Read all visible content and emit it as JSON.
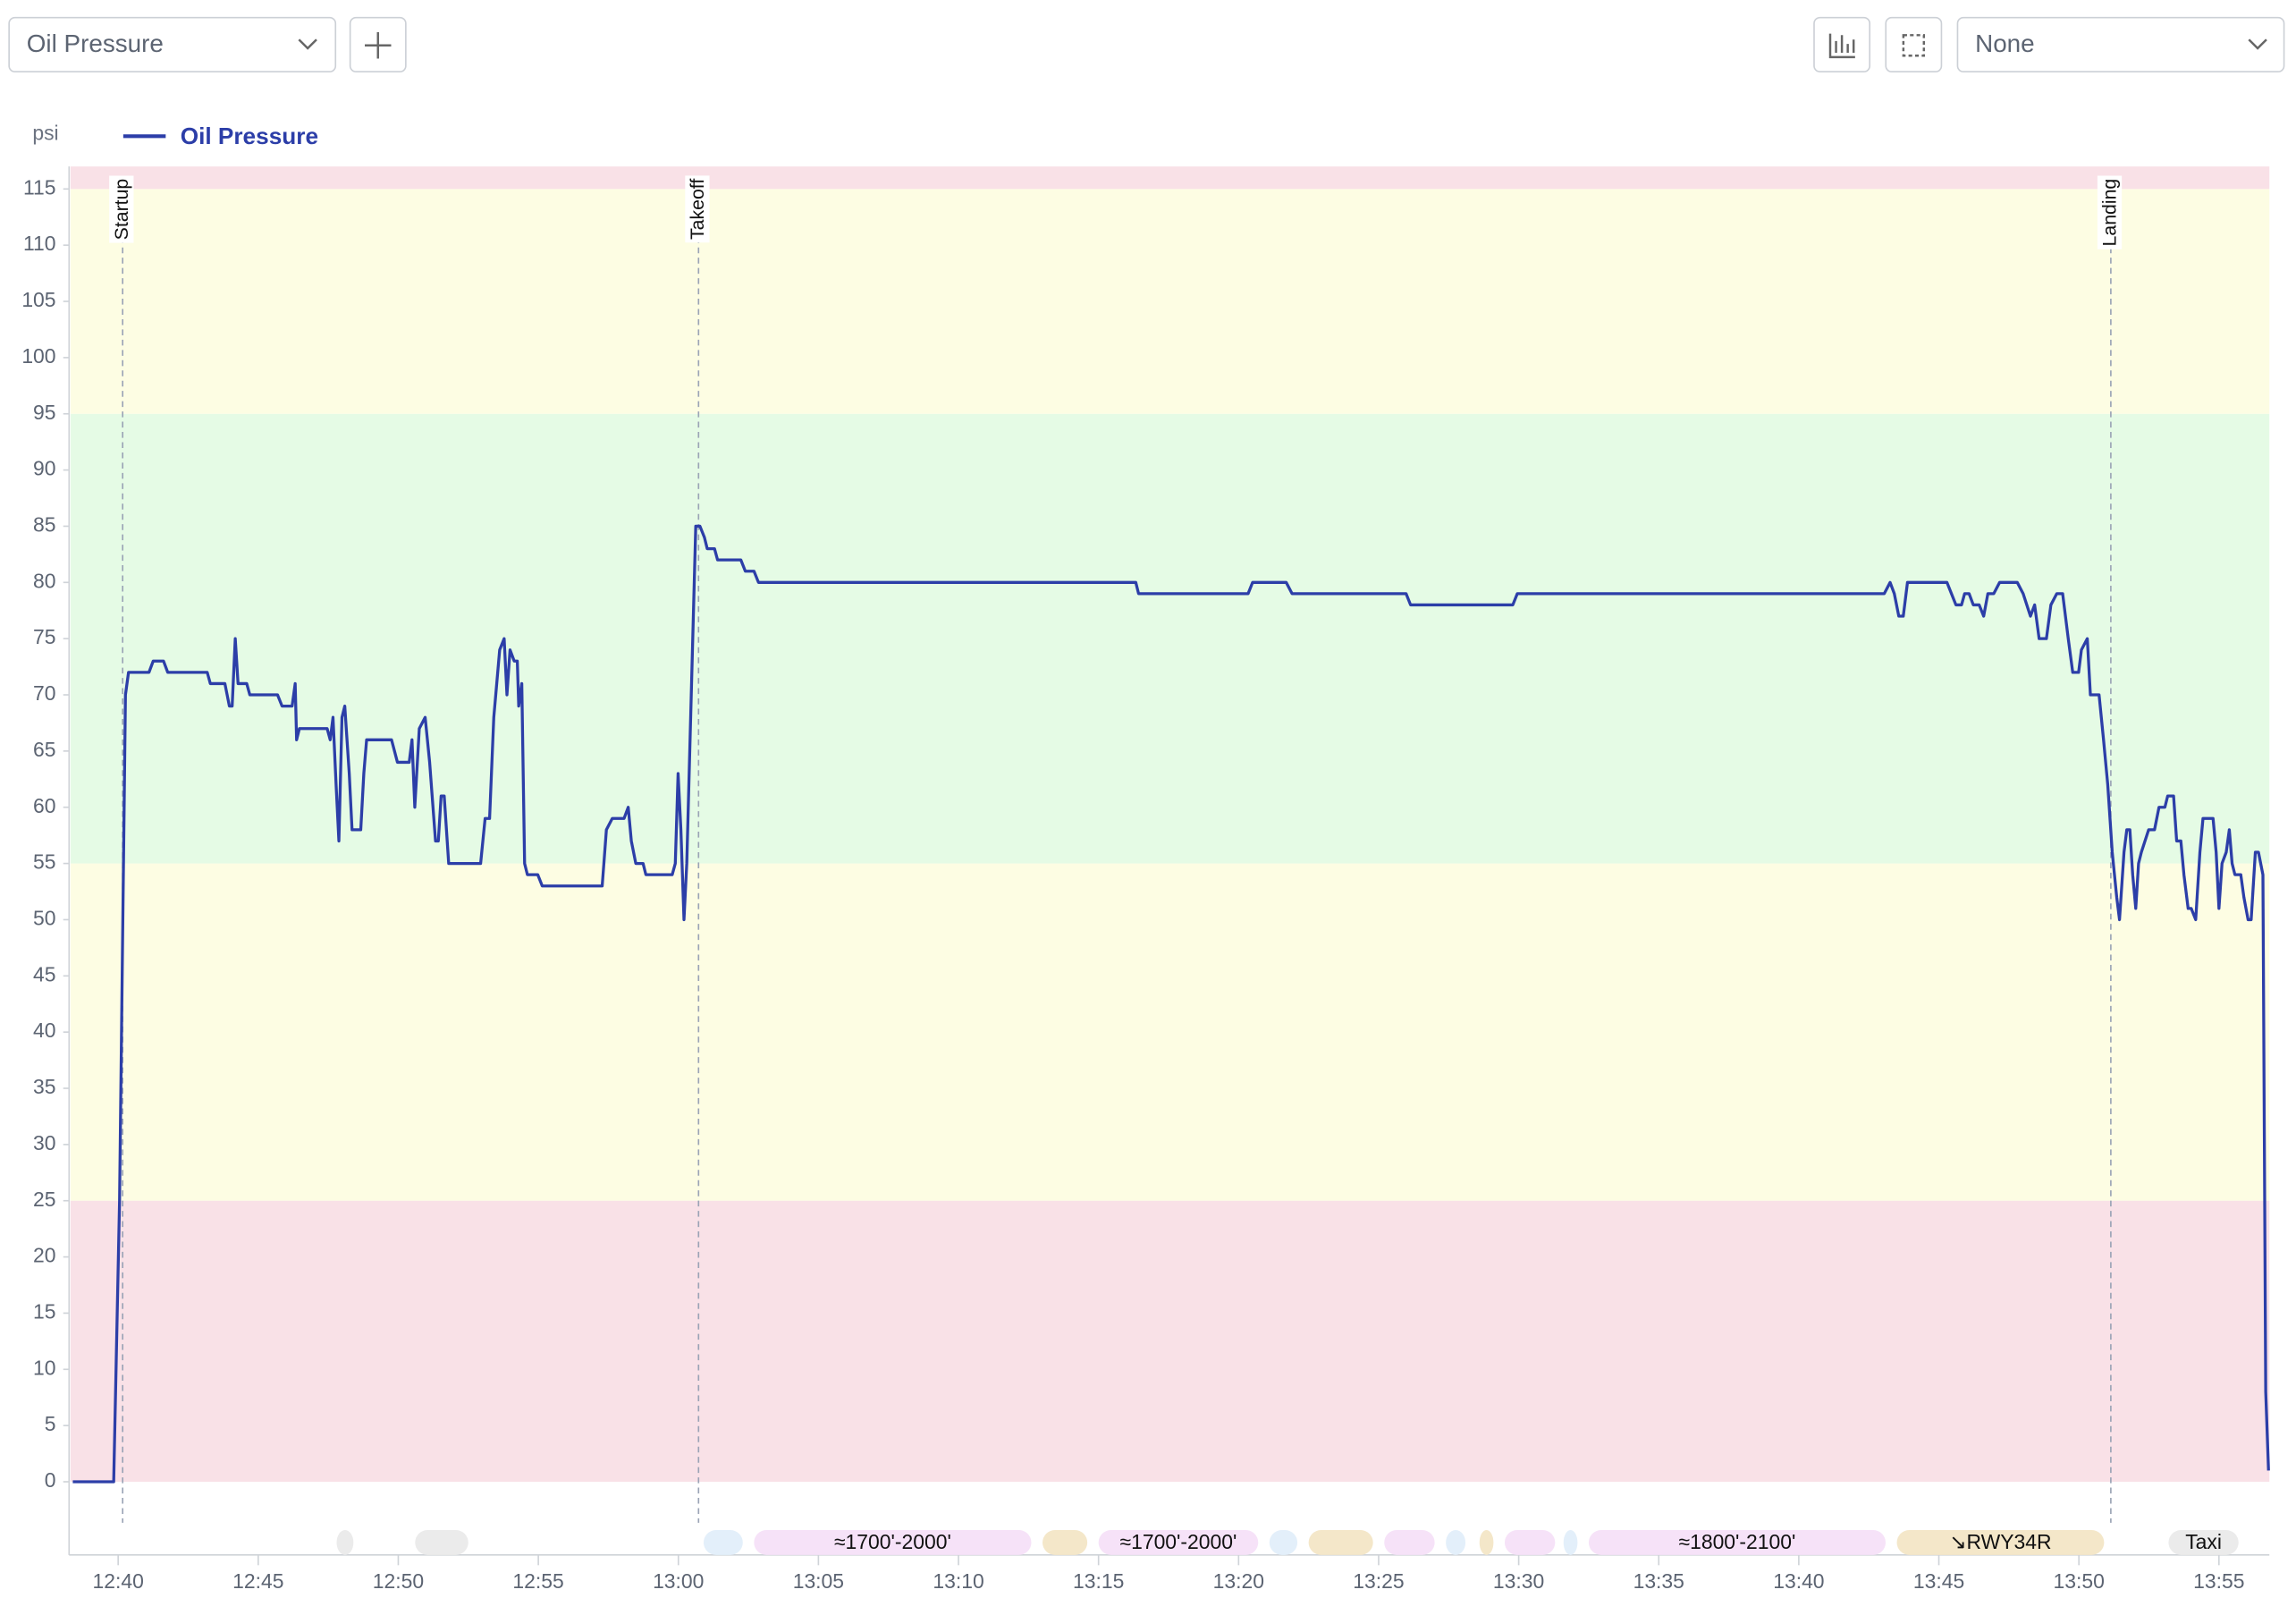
{
  "toolbar": {
    "metric_select": "Oil Pressure",
    "group_select": "None"
  },
  "chart_data": {
    "type": "line",
    "y_unit_label": "psi",
    "legend": "top-left",
    "x": [
      758.38,
      759.84,
      760.05,
      760.26,
      760.37,
      761.1,
      761.25,
      761.62,
      761.77,
      763.18,
      763.29,
      763.81,
      763.97,
      764.07,
      764.18,
      764.28,
      764.59,
      764.7,
      765.69,
      765.85,
      766.21,
      766.32,
      766.37,
      766.47,
      767.46,
      767.57,
      767.67,
      767.78,
      767.88,
      767.99,
      768.09,
      768.25,
      768.35,
      768.66,
      768.77,
      768.87,
      769.76,
      769.97,
      770.39,
      770.49,
      770.59,
      770.75,
      770.96,
      771.12,
      771.33,
      771.43,
      771.53,
      771.64,
      771.8,
      772.94,
      773.1,
      773.26,
      773.41,
      773.62,
      773.78,
      773.88,
      773.99,
      774.14,
      774.25,
      774.3,
      774.41,
      774.51,
      774.61,
      774.98,
      775.14,
      777.28,
      777.43,
      777.64,
      778.06,
      778.21,
      778.32,
      778.48,
      778.74,
      778.84,
      779.78,
      779.89,
      779.99,
      780.09,
      780.2,
      780.3,
      780.46,
      780.62,
      780.77,
      780.93,
      781.03,
      781.29,
      781.4,
      782.23,
      782.39,
      782.7,
      782.86,
      796.33,
      796.43,
      800.34,
      800.5,
      801.7,
      801.91,
      805.98,
      806.14,
      809.79,
      809.95,
      823.05,
      823.26,
      823.41,
      823.57,
      823.73,
      823.88,
      824.04,
      825.29,
      825.45,
      825.61,
      825.81,
      825.92,
      826.08,
      826.23,
      826.44,
      826.6,
      826.75,
      826.96,
      827.17,
      827.8,
      828.01,
      828.27,
      828.42,
      828.58,
      828.84,
      829.0,
      829.21,
      829.42,
      829.62,
      829.78,
      829.99,
      830.09,
      830.3,
      830.41,
      830.72,
      830.88,
      831.03,
      831.19,
      831.35,
      831.45,
      831.61,
      831.71,
      831.82,
      831.92,
      832.03,
      832.13,
      832.23,
      832.49,
      832.7,
      832.86,
      833.07,
      833.17,
      833.38,
      833.49,
      833.64,
      833.75,
      833.9,
      834.01,
      834.17,
      834.32,
      834.43,
      834.79,
      834.9,
      835.0,
      835.11,
      835.26,
      835.37,
      835.47,
      835.57,
      835.78,
      835.89,
      836.04,
      836.15,
      836.3,
      836.41,
      836.57,
      836.67,
      836.77
    ],
    "series": [
      {
        "name": "Oil Pressure",
        "color": "#2c3ea8",
        "values": [
          0,
          0,
          25,
          70,
          72,
          72,
          73,
          73,
          72,
          72,
          71,
          71,
          69,
          69,
          75,
          71,
          71,
          70,
          70,
          69,
          69,
          71,
          66,
          67,
          67,
          66,
          68,
          62,
          57,
          68,
          69,
          63,
          58,
          58,
          63,
          66,
          66,
          64,
          64,
          66,
          60,
          67,
          68,
          64,
          57,
          57,
          61,
          61,
          55,
          55,
          59,
          59,
          68,
          74,
          75,
          70,
          74,
          73,
          73,
          69,
          71,
          55,
          54,
          54,
          53,
          53,
          58,
          59,
          59,
          60,
          57,
          55,
          55,
          54,
          54,
          55,
          63,
          58,
          50,
          55,
          70,
          85,
          85,
          84,
          83,
          83,
          82,
          82,
          81,
          81,
          80,
          80,
          79,
          79,
          80,
          80,
          79,
          79,
          78,
          78,
          79,
          79,
          80,
          79,
          77,
          77,
          80,
          80,
          80,
          79,
          78,
          78,
          79,
          79,
          78,
          78,
          77,
          79,
          79,
          80,
          80,
          79,
          77,
          78,
          75,
          75,
          78,
          79,
          79,
          75,
          72,
          72,
          74,
          75,
          70,
          70,
          66,
          62,
          56,
          52,
          50,
          56,
          58,
          58,
          54,
          51,
          55,
          56,
          58,
          58,
          60,
          60,
          61,
          61,
          57,
          57,
          54,
          51,
          51,
          50,
          56,
          59,
          59,
          56,
          51,
          55,
          56,
          58,
          55,
          54,
          54,
          52,
          50,
          50,
          56,
          56,
          54,
          8,
          1
        ]
      }
    ],
    "xlim": [
      758.3,
      836.8
    ],
    "xticks": [
      {
        "value": 760,
        "label": "12:40"
      },
      {
        "value": 765,
        "label": "12:45"
      },
      {
        "value": 770,
        "label": "12:50"
      },
      {
        "value": 775,
        "label": "12:55"
      },
      {
        "value": 780,
        "label": "13:00"
      },
      {
        "value": 785,
        "label": "13:05"
      },
      {
        "value": 790,
        "label": "13:10"
      },
      {
        "value": 795,
        "label": "13:15"
      },
      {
        "value": 800,
        "label": "13:20"
      },
      {
        "value": 805,
        "label": "13:25"
      },
      {
        "value": 810,
        "label": "13:30"
      },
      {
        "value": 815,
        "label": "13:35"
      },
      {
        "value": 820,
        "label": "13:40"
      },
      {
        "value": 825,
        "label": "13:45"
      },
      {
        "value": 830,
        "label": "13:50"
      },
      {
        "value": 835,
        "label": "13:55"
      }
    ],
    "ylim": [
      0,
      117
    ],
    "yticks": [
      0,
      5,
      10,
      15,
      20,
      25,
      30,
      35,
      40,
      45,
      50,
      55,
      60,
      65,
      70,
      75,
      80,
      85,
      90,
      95,
      100,
      105,
      110,
      115
    ],
    "bands": [
      {
        "from": 0,
        "to": 25,
        "color": "#f9e1e7"
      },
      {
        "from": 25,
        "to": 55,
        "color": "#fdfde3"
      },
      {
        "from": 55,
        "to": 95,
        "color": "#e5fbe5"
      },
      {
        "from": 95,
        "to": 115,
        "color": "#fdfde3"
      },
      {
        "from": 115,
        "to": 117,
        "color": "#f9e1e7"
      }
    ],
    "annotations": [
      {
        "x": 760.16,
        "label": "Startup"
      },
      {
        "x": 780.72,
        "label": "Takeoff"
      },
      {
        "x": 831.14,
        "label": "Landing"
      }
    ],
    "events": [
      {
        "start": 767.8,
        "end": 768.4,
        "color": "#ebebeb"
      },
      {
        "start": 770.6,
        "end": 772.5,
        "color": "#ebebeb"
      },
      {
        "start": 780.9,
        "end": 782.3,
        "color": "#e3effa"
      },
      {
        "start": 782.7,
        "end": 792.6,
        "color": "#f6e2f8",
        "label": "≈1700'-2000'"
      },
      {
        "start": 793.0,
        "end": 794.6,
        "color": "#f4e7c9"
      },
      {
        "start": 795.0,
        "end": 800.7,
        "color": "#f6e2f8",
        "label": "≈1700'-2000'"
      },
      {
        "start": 801.1,
        "end": 802.1,
        "color": "#e3effa"
      },
      {
        "start": 802.5,
        "end": 804.8,
        "color": "#f4e7c9"
      },
      {
        "start": 805.2,
        "end": 807.0,
        "color": "#f6e2f8"
      },
      {
        "start": 807.4,
        "end": 808.1,
        "color": "#e3effa"
      },
      {
        "start": 808.6,
        "end": 809.1,
        "color": "#f4e7c9"
      },
      {
        "start": 809.5,
        "end": 811.3,
        "color": "#f6e2f8"
      },
      {
        "start": 811.6,
        "end": 812.1,
        "color": "#e3effa"
      },
      {
        "start": 812.5,
        "end": 823.1,
        "color": "#f6e2f8",
        "label": "≈1800'-2100'"
      },
      {
        "start": 823.5,
        "end": 830.9,
        "color": "#f4e7c9",
        "label": "↘RWY34R"
      },
      {
        "start": 833.2,
        "end": 835.7,
        "color": "#ebebeb",
        "label": "Taxi"
      }
    ]
  }
}
